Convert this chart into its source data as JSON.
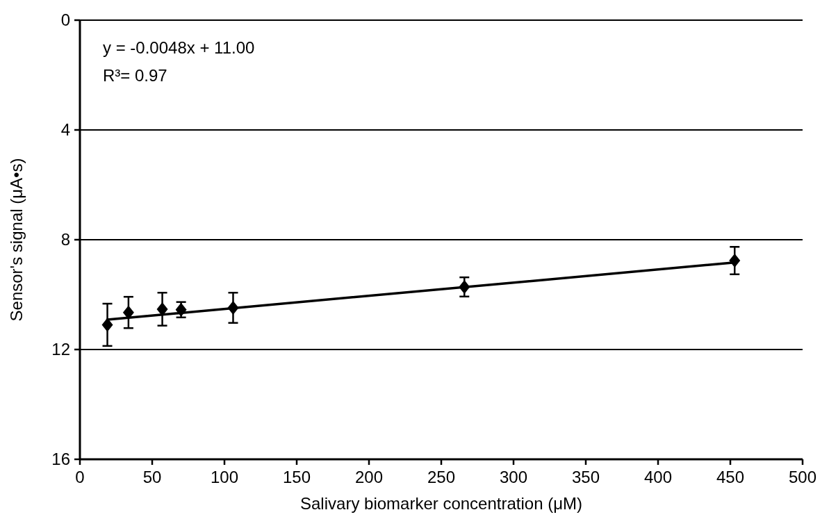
{
  "chart_data": {
    "type": "scatter",
    "xlabel": "Salivary biomarker concentration (μM)",
    "ylabel": "Sensor's signal (μA•s)",
    "xlim": [
      0,
      500
    ],
    "xticks": [
      0,
      50,
      100,
      150,
      200,
      250,
      300,
      350,
      400,
      450,
      500
    ],
    "ylim": [
      16,
      0
    ],
    "yticks": [
      0,
      4,
      8,
      12,
      16
    ],
    "grid": "y",
    "annotations": [
      "y = -0.0048x + 11.00",
      "R³= 0.97"
    ],
    "series": [
      {
        "marker": "diamond",
        "color": "#000000",
        "x": [
          19,
          33.6,
          57,
          70,
          106,
          266,
          453
        ],
        "values": [
          11.1,
          10.65,
          10.53,
          10.55,
          10.48,
          9.72,
          8.76
        ],
        "errors": [
          0.77,
          0.57,
          0.6,
          0.28,
          0.55,
          0.35,
          0.5
        ]
      },
      {
        "type": "line",
        "color": "#000000",
        "x": [
          19,
          453
        ],
        "values": [
          10.91,
          8.83
        ],
        "line_style": "solid"
      }
    ]
  }
}
